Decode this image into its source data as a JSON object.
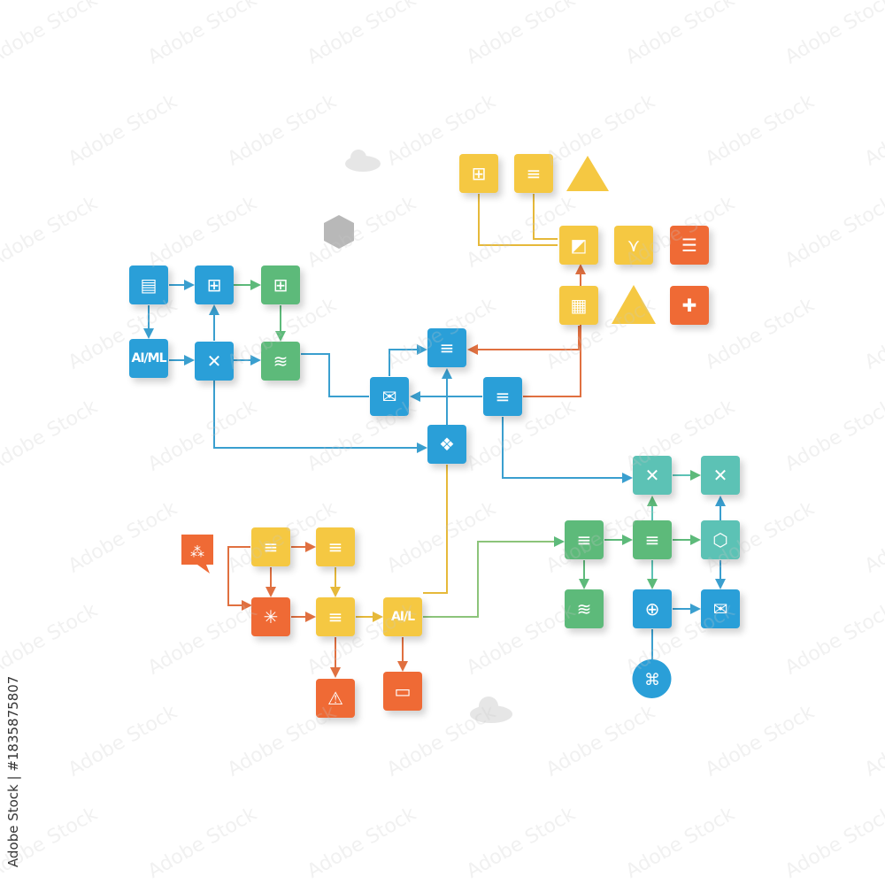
{
  "colors": {
    "blue": "#2a9fd8",
    "green": "#5dba7a",
    "teal": "#5cc2b5",
    "yellow": "#f5c842",
    "orange": "#ef6a35",
    "gray": "#b8b8b8"
  },
  "nodes": [
    {
      "id": "n1",
      "color": "blue",
      "icon": "drawer-icon",
      "glyph": "▤"
    },
    {
      "id": "n2",
      "color": "blue",
      "icon": "dashboard-icon",
      "glyph": "⊞"
    },
    {
      "id": "n3",
      "color": "blue",
      "icon": "ai-ml-label",
      "label": "AI/ML"
    },
    {
      "id": "n4",
      "color": "blue",
      "icon": "network-x-icon",
      "glyph": "✕"
    },
    {
      "id": "n5",
      "color": "green",
      "icon": "grid-icon",
      "glyph": "⊞"
    },
    {
      "id": "n6",
      "color": "green",
      "icon": "database-icon",
      "glyph": "≋"
    },
    {
      "id": "n7",
      "color": "blue",
      "icon": "mail-icon",
      "glyph": "✉"
    },
    {
      "id": "n8",
      "color": "blue",
      "icon": "database-icon",
      "glyph": "≡"
    },
    {
      "id": "n9",
      "color": "blue",
      "icon": "database-icon",
      "glyph": "≡"
    },
    {
      "id": "n10",
      "color": "blue",
      "icon": "hub-icon",
      "glyph": "❖"
    },
    {
      "id": "n11",
      "color": "yellow",
      "icon": "grid-icon",
      "glyph": "⊞"
    },
    {
      "id": "n12",
      "color": "yellow",
      "icon": "database-icon",
      "glyph": "≡"
    },
    {
      "id": "n13",
      "color": "yellow",
      "icon": "chart-icon",
      "glyph": "◩"
    },
    {
      "id": "n14",
      "color": "yellow",
      "icon": "merge-icon",
      "glyph": "⋎"
    },
    {
      "id": "n15",
      "color": "orange",
      "icon": "list-icon",
      "glyph": "☰"
    },
    {
      "id": "n16",
      "color": "yellow",
      "icon": "table-icon",
      "glyph": "▦"
    },
    {
      "id": "n17",
      "color": "orange",
      "icon": "cross-icon",
      "glyph": "✚"
    },
    {
      "id": "n18",
      "color": "teal",
      "icon": "network-x-icon",
      "glyph": "✕"
    },
    {
      "id": "n19",
      "color": "teal",
      "icon": "network-x-icon",
      "glyph": "✕"
    },
    {
      "id": "n20",
      "color": "green",
      "icon": "database-icon",
      "glyph": "≡"
    },
    {
      "id": "n21",
      "color": "green",
      "icon": "database-icon",
      "glyph": "≡"
    },
    {
      "id": "n22",
      "color": "teal",
      "icon": "box-icon",
      "glyph": "⬡"
    },
    {
      "id": "n23",
      "color": "green",
      "icon": "database-icon",
      "glyph": "≋"
    },
    {
      "id": "n24",
      "color": "blue",
      "icon": "plus-circle-icon",
      "glyph": "⊕"
    },
    {
      "id": "n25",
      "color": "blue",
      "icon": "mail-icon",
      "glyph": "✉"
    },
    {
      "id": "n26",
      "color": "yellow",
      "icon": "database-icon",
      "glyph": "≡"
    },
    {
      "id": "n27",
      "color": "yellow",
      "icon": "database-icon",
      "glyph": "≡"
    },
    {
      "id": "n28",
      "color": "orange",
      "icon": "network-icon",
      "glyph": "✳"
    },
    {
      "id": "n29",
      "color": "yellow",
      "icon": "database-icon",
      "glyph": "≡"
    },
    {
      "id": "n30",
      "color": "yellow",
      "icon": "ai-label",
      "label": "AI/L"
    },
    {
      "id": "n31",
      "color": "orange",
      "icon": "warning-icon",
      "glyph": "⚠"
    },
    {
      "id": "n32",
      "color": "orange",
      "icon": "server-icon",
      "glyph": "▭"
    }
  ],
  "credit": "Adobe Stock | #1835875807",
  "watermark": "Adobe Stock"
}
